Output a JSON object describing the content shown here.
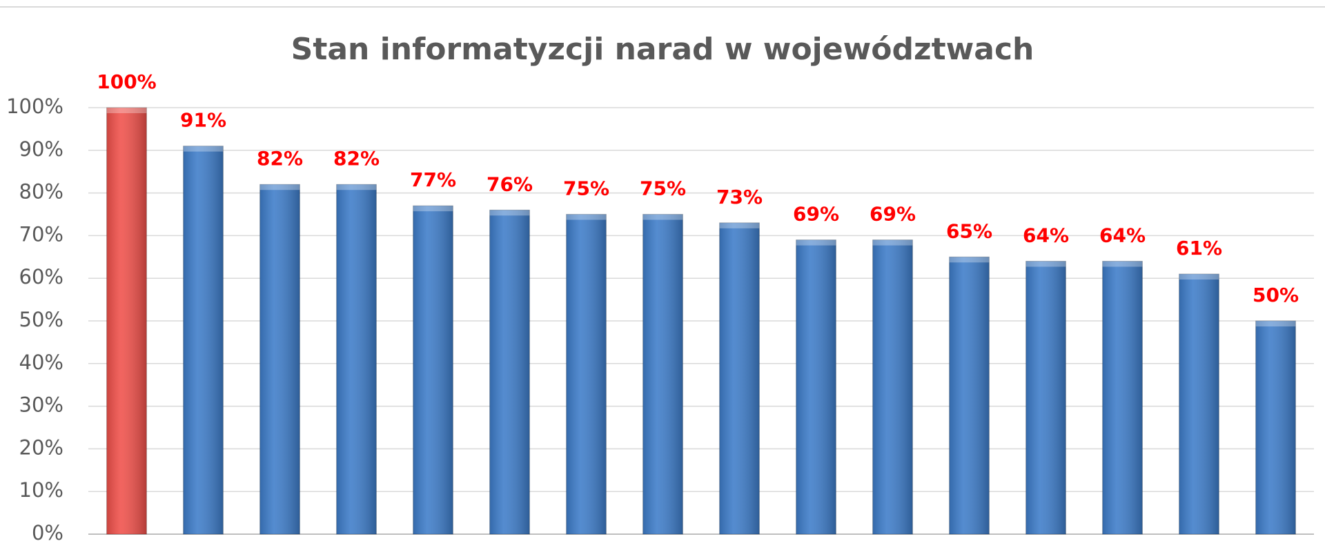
{
  "chart_data": {
    "type": "bar",
    "title": "Stan informatyzcji narad w województwach",
    "categories": [
      null,
      null,
      null,
      null,
      null,
      null,
      null,
      null,
      null,
      null,
      null,
      null,
      null,
      null,
      null,
      null
    ],
    "values": [
      100,
      91,
      82,
      82,
      77,
      76,
      75,
      75,
      73,
      69,
      69,
      65,
      64,
      64,
      61,
      50
    ],
    "value_labels": [
      "100%",
      "91%",
      "82%",
      "82%",
      "77%",
      "76%",
      "75%",
      "75%",
      "73%",
      "69%",
      "69%",
      "65%",
      "64%",
      "64%",
      "61%",
      "50%"
    ],
    "colors": [
      "#f0504a",
      "#3d7cc9",
      "#3d7cc9",
      "#3d7cc9",
      "#3d7cc9",
      "#3d7cc9",
      "#3d7cc9",
      "#3d7cc9",
      "#3d7cc9",
      "#3d7cc9",
      "#3d7cc9",
      "#3d7cc9",
      "#3d7cc9",
      "#3d7cc9",
      "#3d7cc9",
      "#3d7cc9"
    ],
    "ylim": [
      0,
      100
    ],
    "yticks": [
      {
        "value": 0,
        "label": "0%"
      },
      {
        "value": 10,
        "label": "10%"
      },
      {
        "value": 20,
        "label": "20%"
      },
      {
        "value": 30,
        "label": "30%"
      },
      {
        "value": 40,
        "label": "40%"
      },
      {
        "value": 50,
        "label": "50%"
      },
      {
        "value": 60,
        "label": "60%"
      },
      {
        "value": 70,
        "label": "70%"
      },
      {
        "value": 80,
        "label": "80%"
      },
      {
        "value": 90,
        "label": "90%"
      },
      {
        "value": 100,
        "label": "100%"
      }
    ],
    "grid": true
  }
}
